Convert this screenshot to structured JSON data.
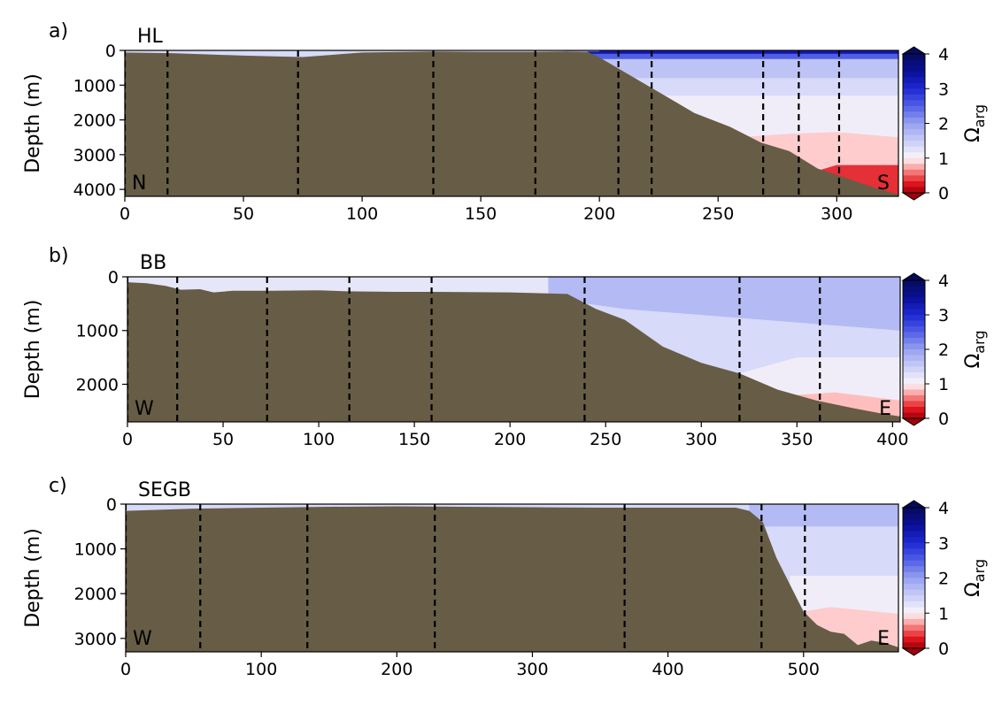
{
  "colors": {
    "bathymetry": "#675c45",
    "station_line": "#000000"
  },
  "colorbar": {
    "label_main": "Ω",
    "label_sub": "arg",
    "ticks": [
      "0",
      "1",
      "2",
      "3",
      "4"
    ]
  },
  "chart_data": [
    {
      "type": "contour",
      "panel_label": "a)",
      "title": "HL",
      "ylabel": "Depth (m)",
      "xlim": [
        0,
        326
      ],
      "ylim": [
        4200,
        0
      ],
      "yticks": [
        0,
        1000,
        2000,
        3000,
        4000
      ],
      "xticks": [
        0,
        50,
        100,
        150,
        200,
        250,
        300
      ],
      "ytick_labels": [
        "0",
        "1000",
        "2000",
        "3000",
        "4000"
      ],
      "xtick_labels": [
        "0",
        "50",
        "100",
        "150",
        "200",
        "250",
        "300"
      ],
      "left_label": "N",
      "right_label": "S",
      "stations": [
        0,
        18,
        73,
        130,
        173,
        208,
        222,
        269,
        284,
        301
      ],
      "bathymetry": [
        [
          0,
          60
        ],
        [
          20,
          80
        ],
        [
          50,
          150
        ],
        [
          75,
          190
        ],
        [
          100,
          60
        ],
        [
          130,
          30
        ],
        [
          150,
          40
        ],
        [
          170,
          40
        ],
        [
          185,
          30
        ],
        [
          195,
          40
        ],
        [
          200,
          200
        ],
        [
          210,
          600
        ],
        [
          225,
          1200
        ],
        [
          240,
          1800
        ],
        [
          255,
          2200
        ],
        [
          268,
          2650
        ],
        [
          280,
          2900
        ],
        [
          292,
          3400
        ],
        [
          305,
          3700
        ],
        [
          318,
          4000
        ],
        [
          326,
          4150
        ]
      ],
      "omega_layers": [
        {
          "omega": 3.3,
          "poly": [
            [
              195,
              0
            ],
            [
              326,
              0
            ],
            [
              326,
              150
            ],
            [
              195,
              150
            ]
          ]
        },
        {
          "omega": 2.5,
          "poly": [
            [
              195,
              100
            ],
            [
              326,
              100
            ],
            [
              326,
              300
            ],
            [
              195,
              300
            ]
          ]
        },
        {
          "omega": 1.9,
          "poly": [
            [
              185,
              0
            ],
            [
              200,
              0
            ],
            [
              200,
              30
            ],
            [
              185,
              30
            ]
          ]
        },
        {
          "omega": 1.6,
          "poly": [
            [
              195,
              250
            ],
            [
              326,
              250
            ],
            [
              326,
              900
            ],
            [
              195,
              900
            ]
          ]
        },
        {
          "omega": 1.35,
          "poly": [
            [
              195,
              800
            ],
            [
              326,
              800
            ],
            [
              326,
              1400
            ],
            [
              195,
              1400
            ]
          ]
        },
        {
          "omega": 1.1,
          "poly": [
            [
              195,
              1300
            ],
            [
              326,
              1300
            ],
            [
              326,
              2500
            ],
            [
              195,
              2500
            ]
          ]
        },
        {
          "omega": 0.85,
          "poly": [
            [
              258,
              2500
            ],
            [
              280,
              2400
            ],
            [
              300,
              2350
            ],
            [
              326,
              2500
            ],
            [
              326,
              3400
            ],
            [
              258,
              3400
            ]
          ]
        },
        {
          "omega": 0.35,
          "poly": [
            [
              290,
              3500
            ],
            [
              300,
              3300
            ],
            [
              326,
              3300
            ],
            [
              326,
              4200
            ],
            [
              290,
              4200
            ]
          ]
        }
      ]
    },
    {
      "type": "contour",
      "panel_label": "b)",
      "title": "BB",
      "ylabel": "Depth (m)",
      "xlim": [
        0,
        404
      ],
      "ylim": [
        2700,
        0
      ],
      "yticks": [
        0,
        1000,
        2000
      ],
      "xticks": [
        0,
        50,
        100,
        150,
        200,
        250,
        300,
        350,
        400
      ],
      "ytick_labels": [
        "0",
        "1000",
        "2000"
      ],
      "xtick_labels": [
        "0",
        "50",
        "100",
        "150",
        "200",
        "250",
        "300",
        "350",
        "400"
      ],
      "left_label": "W",
      "right_label": "E",
      "stations": [
        0,
        26,
        73,
        116,
        159,
        239,
        320,
        362
      ],
      "bathymetry": [
        [
          0,
          100
        ],
        [
          10,
          120
        ],
        [
          20,
          170
        ],
        [
          28,
          240
        ],
        [
          38,
          230
        ],
        [
          45,
          290
        ],
        [
          55,
          260
        ],
        [
          75,
          260
        ],
        [
          100,
          250
        ],
        [
          115,
          270
        ],
        [
          140,
          280
        ],
        [
          160,
          280
        ],
        [
          200,
          290
        ],
        [
          230,
          320
        ],
        [
          245,
          600
        ],
        [
          260,
          800
        ],
        [
          280,
          1300
        ],
        [
          300,
          1600
        ],
        [
          320,
          1800
        ],
        [
          340,
          2100
        ],
        [
          360,
          2300
        ],
        [
          380,
          2450
        ],
        [
          395,
          2550
        ],
        [
          404,
          2600
        ]
      ],
      "omega_layers": [
        {
          "omega": 1.35,
          "poly": [
            [
              0,
              0
            ],
            [
              404,
              0
            ],
            [
              404,
              2700
            ],
            [
              0,
              2700
            ]
          ]
        },
        {
          "omega": 1.2,
          "poly": [
            [
              0,
              0
            ],
            [
              250,
              0
            ],
            [
              240,
              300
            ],
            [
              0,
              300
            ]
          ]
        },
        {
          "omega": 1.5,
          "poly": [
            [
              220,
              0
            ],
            [
              404,
              0
            ],
            [
              404,
              200
            ],
            [
              220,
              200
            ]
          ]
        },
        {
          "omega": 1.7,
          "poly": [
            [
              220,
              0
            ],
            [
              404,
              0
            ],
            [
              404,
              1000
            ],
            [
              260,
              600
            ],
            [
              220,
              400
            ]
          ]
        },
        {
          "omega": 1.1,
          "poly": [
            [
              320,
              1800
            ],
            [
              350,
              1500
            ],
            [
              404,
              1500
            ],
            [
              404,
              2700
            ],
            [
              320,
              2700
            ]
          ]
        },
        {
          "omega": 0.8,
          "poly": [
            [
              350,
              2200
            ],
            [
              370,
              2150
            ],
            [
              404,
              2300
            ],
            [
              404,
              2700
            ],
            [
              350,
              2700
            ]
          ]
        }
      ]
    },
    {
      "type": "contour",
      "panel_label": "c)",
      "title": "SEGB",
      "ylabel": "Depth (m)",
      "xlim": [
        0,
        570
      ],
      "ylim": [
        3300,
        0
      ],
      "yticks": [
        0,
        1000,
        2000,
        3000
      ],
      "xticks": [
        0,
        100,
        200,
        300,
        400,
        500
      ],
      "ytick_labels": [
        "0",
        "1000",
        "2000",
        "3000"
      ],
      "xtick_labels": [
        "0",
        "100",
        "200",
        "300",
        "400",
        "500"
      ],
      "left_label": "W",
      "right_label": "E",
      "stations": [
        0,
        55,
        134,
        228,
        368,
        469,
        501
      ],
      "bathymetry": [
        [
          0,
          150
        ],
        [
          50,
          100
        ],
        [
          100,
          80
        ],
        [
          150,
          60
        ],
        [
          200,
          50
        ],
        [
          250,
          60
        ],
        [
          300,
          70
        ],
        [
          350,
          80
        ],
        [
          400,
          80
        ],
        [
          450,
          80
        ],
        [
          460,
          150
        ],
        [
          470,
          400
        ],
        [
          480,
          1200
        ],
        [
          490,
          1800
        ],
        [
          500,
          2400
        ],
        [
          510,
          2700
        ],
        [
          520,
          2850
        ],
        [
          530,
          2900
        ],
        [
          540,
          3150
        ],
        [
          550,
          3050
        ],
        [
          560,
          3100
        ],
        [
          570,
          3200
        ]
      ],
      "omega_layers": [
        {
          "omega": 1.35,
          "poly": [
            [
              0,
              0
            ],
            [
              570,
              0
            ],
            [
              570,
              3300
            ],
            [
              0,
              3300
            ]
          ]
        },
        {
          "omega": 1.7,
          "poly": [
            [
              460,
              0
            ],
            [
              570,
              0
            ],
            [
              570,
              500
            ],
            [
              460,
              500
            ]
          ]
        },
        {
          "omega": 1.1,
          "poly": [
            [
              490,
              1600
            ],
            [
              570,
              1600
            ],
            [
              570,
              3300
            ],
            [
              490,
              3300
            ]
          ]
        },
        {
          "omega": 0.85,
          "poly": [
            [
              500,
              2400
            ],
            [
              520,
              2300
            ],
            [
              570,
              2450
            ],
            [
              570,
              3300
            ],
            [
              500,
              3300
            ]
          ]
        }
      ]
    }
  ]
}
